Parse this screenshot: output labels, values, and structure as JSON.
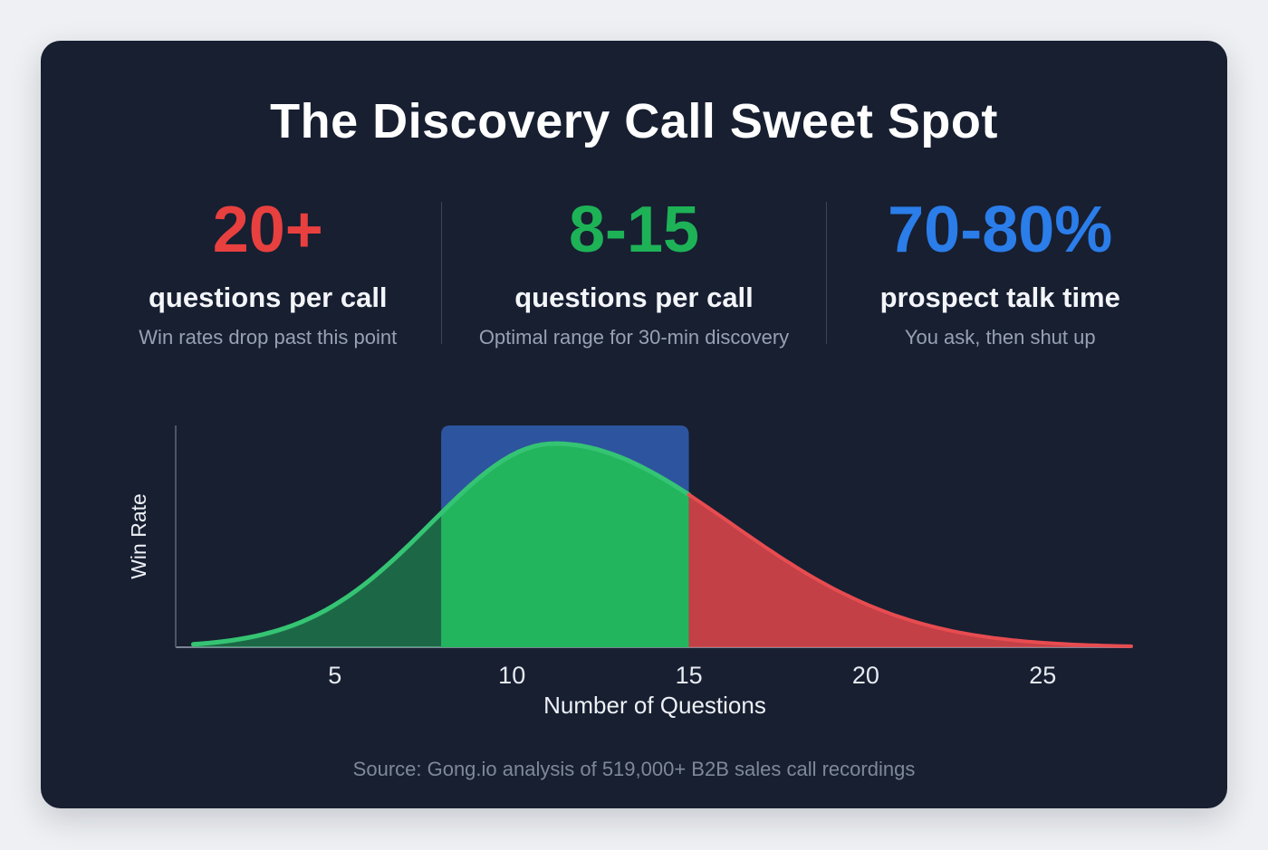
{
  "title": "The Discovery Call Sweet Spot",
  "stats": [
    {
      "value": "20+",
      "label": "questions per call",
      "sub": "Win rates drop past this point",
      "color": "#e8403f"
    },
    {
      "value": "8-15",
      "label": "questions per call",
      "sub": "Optimal range for 30-min discovery",
      "color": "#1eb257"
    },
    {
      "value": "70-80%",
      "label": "prospect talk time",
      "sub": "You ask, then shut up",
      "color": "#2b7de9"
    }
  ],
  "source": "Source: Gong.io analysis of 519,000+ B2B sales call recordings",
  "chart_data": {
    "type": "area",
    "title": "",
    "xlabel": "Number of Questions",
    "ylabel": "Win Rate",
    "x_ticks": [
      5,
      10,
      15,
      20,
      25
    ],
    "x_range": [
      0.5,
      27.5
    ],
    "grid": false,
    "curve": {
      "shape": "skewed-gaussian",
      "mean": 11.2,
      "sd_left": 3.5,
      "sd_right": 5.0,
      "x_start": 1,
      "x_end": 27.5,
      "stroke_green": "#35c473",
      "stroke_red": "#e74c50"
    },
    "optimal_band": {
      "from": 8,
      "to": 15,
      "color": "#2d549e"
    },
    "segments": [
      {
        "name": "rising",
        "x_from": 1,
        "x_to": 8,
        "fill": "rgba(34,178,92,0.5)"
      },
      {
        "name": "optimal",
        "x_from": 8,
        "x_to": 15,
        "fill": "#23b55d"
      },
      {
        "name": "declining",
        "x_from": 15,
        "x_to": 27.5,
        "fill": "rgba(225,70,74,0.85)"
      }
    ],
    "axis_color_y": "#4d5668",
    "axis_color_x": "#7c8496",
    "tick_color": "#e7eaf1"
  }
}
